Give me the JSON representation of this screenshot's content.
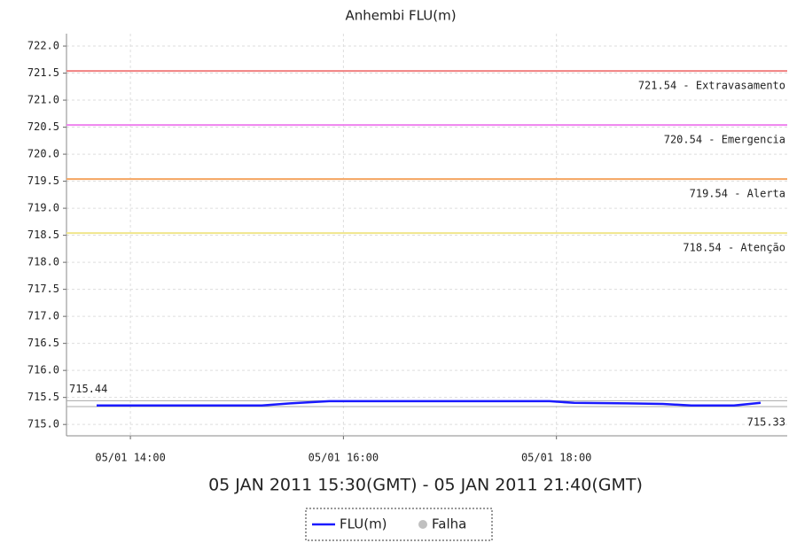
{
  "chart_data": {
    "type": "line",
    "title": "Anhembi FLU(m)",
    "x_label": "05 JAN 2011 15:30(GMT) - 05 JAN 2011 21:40(GMT)",
    "xlim": [
      "05/01 13:24",
      "05/01 20:10"
    ],
    "xticks": [
      "05/01 14:00",
      "05/01 16:00",
      "05/01 18:00"
    ],
    "ylim": [
      714.79,
      722.23
    ],
    "yticks": [
      {
        "value": 715.0,
        "label": "715.0"
      },
      {
        "value": 715.5,
        "label": "715.5"
      },
      {
        "value": 716.0,
        "label": "716.0"
      },
      {
        "value": 716.5,
        "label": "716.5"
      },
      {
        "value": 717.0,
        "label": "717.0"
      },
      {
        "value": 717.5,
        "label": "717.5"
      },
      {
        "value": 718.0,
        "label": "718.0"
      },
      {
        "value": 718.5,
        "label": "718.5"
      },
      {
        "value": 719.0,
        "label": "719.0"
      },
      {
        "value": 719.5,
        "label": "719.5"
      },
      {
        "value": 720.0,
        "label": "720.0"
      },
      {
        "value": 720.5,
        "label": "720.5"
      },
      {
        "value": 721.0,
        "label": "721.0"
      },
      {
        "value": 721.5,
        "label": "721.5"
      },
      {
        "value": 722.0,
        "label": "722.0"
      }
    ],
    "grid": true,
    "thresholds": [
      {
        "value": 721.54,
        "label": "721.54 - Extravasamento",
        "color": "#f08080"
      },
      {
        "value": 720.54,
        "label": "720.54 - Emergencia",
        "color": "#ee82ee"
      },
      {
        "value": 719.54,
        "label": "719.54 - Alerta",
        "color": "#f4a460"
      },
      {
        "value": 718.54,
        "label": "718.54 - Atenção",
        "color": "#f0e68c"
      }
    ],
    "max_line": 715.44,
    "min_line": 715.33,
    "series": [
      {
        "name": "FLU(m)",
        "color": "#1a1aff",
        "x": [
          "05/01 13:41",
          "05/01 14:20",
          "05/01 15:00",
          "05/01 15:14",
          "05/01 15:30",
          "05/01 15:52",
          "05/01 16:30",
          "05/01 17:00",
          "05/01 17:30",
          "05/01 17:56",
          "05/01 18:10",
          "05/01 18:40",
          "05/01 19:00",
          "05/01 19:16",
          "05/01 19:40",
          "05/01 19:55"
        ],
        "values": [
          715.35,
          715.35,
          715.35,
          715.35,
          715.39,
          715.43,
          715.43,
          715.43,
          715.43,
          715.43,
          715.4,
          715.39,
          715.38,
          715.35,
          715.35,
          715.4
        ]
      }
    ],
    "falha_legend": {
      "name": "Falha",
      "color": "#c0c0c0"
    }
  }
}
